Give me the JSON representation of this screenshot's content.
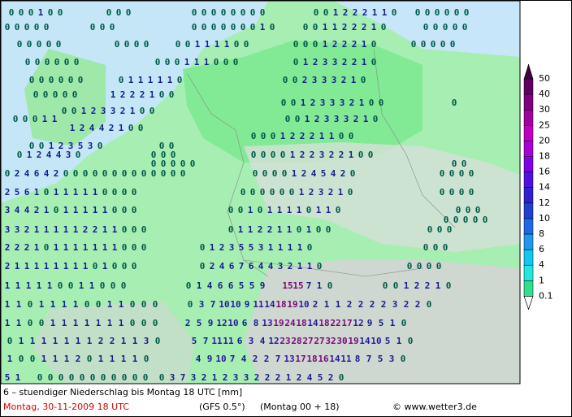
{
  "map": {
    "rows": [
      [
        [
          0,
          0,
          0,
          1,
          0,
          0
        ],
        [
          0,
          0,
          0
        ],
        [
          0,
          0,
          0,
          0,
          0,
          0,
          0,
          0
        ],
        [
          0,
          0,
          1,
          2,
          2,
          2,
          1,
          1,
          0
        ],
        [
          0,
          0,
          0,
          0,
          0,
          0
        ]
      ],
      [
        [
          0,
          0,
          0,
          0,
          0
        ],
        [
          0,
          0,
          0
        ],
        [
          0,
          0,
          0,
          0,
          0,
          0,
          0,
          1,
          0
        ],
        [
          0,
          0,
          1,
          1,
          2,
          2,
          2,
          1,
          0
        ],
        [
          0,
          0,
          0,
          0,
          0
        ]
      ],
      [
        [
          0,
          0,
          0,
          0,
          0
        ],
        [
          0,
          0,
          0,
          0
        ],
        [
          0,
          0,
          1,
          1,
          1,
          1,
          0,
          0
        ],
        [
          0,
          0,
          0,
          1,
          2,
          2,
          2,
          1,
          0
        ],
        [
          0,
          0,
          0,
          0,
          0
        ]
      ],
      [
        [
          0,
          0,
          0,
          0,
          0,
          0
        ],
        [
          0,
          0,
          0,
          1,
          1,
          1,
          0,
          0,
          0
        ],
        [
          0,
          1,
          2,
          3,
          3,
          2,
          2,
          1,
          0
        ]
      ],
      [
        [
          0,
          0,
          0,
          0,
          0,
          0
        ],
        [
          0,
          1,
          1,
          1,
          1,
          1,
          0
        ],
        [
          0,
          0,
          2,
          3,
          3,
          3,
          2,
          1,
          0
        ]
      ],
      [
        [
          0,
          0,
          0,
          0,
          0
        ],
        [
          1,
          2,
          2,
          2,
          1,
          0,
          0
        ]
      ],
      [
        [
          0,
          0,
          1,
          2,
          3,
          3,
          3,
          2,
          1,
          0,
          0
        ],
        [
          0
        ]
      ],
      [
        [
          0,
          0,
          1,
          2,
          3,
          3,
          2,
          1,
          0,
          0
        ]
      ],
      [
        [
          0,
          0,
          0,
          1,
          1
        ],
        [
          0,
          0,
          1,
          2,
          3,
          3,
          3,
          2,
          1,
          0
        ]
      ],
      [
        [
          1,
          2,
          4,
          4,
          2,
          1,
          0,
          0
        ]
      ],
      [
        [
          0,
          0,
          0,
          1,
          2,
          2,
          2,
          1,
          1,
          0,
          0
        ]
      ],
      [
        [
          0,
          0,
          1,
          2,
          3,
          5,
          3,
          0
        ],
        [
          0,
          0
        ]
      ],
      [
        [
          0,
          1,
          2,
          4,
          4,
          3,
          0
        ],
        [
          0,
          0,
          0
        ],
        [
          0,
          0,
          0,
          0,
          1,
          2,
          2,
          3,
          2,
          2,
          1,
          0,
          0
        ]
      ],
      [
        [
          0,
          0,
          0,
          0,
          0
        ],
        [
          0,
          0
        ]
      ],
      [
        [
          0,
          2,
          4,
          6,
          4,
          2,
          0,
          0,
          0,
          0
        ],
        [
          0,
          0,
          0,
          0,
          0,
          0,
          0,
          0,
          0
        ],
        [
          0,
          0,
          0,
          0,
          1,
          2,
          4,
          5,
          4,
          2,
          0
        ],
        [
          0,
          0,
          0,
          0
        ]
      ],
      [
        [
          2,
          5,
          6,
          1,
          0,
          1,
          1,
          1,
          1,
          1,
          0,
          0,
          0,
          0
        ],
        [
          0,
          0,
          0,
          0,
          0,
          0,
          1,
          2,
          3,
          2,
          1,
          0
        ],
        [
          0,
          0,
          0,
          0
        ]
      ],
      [
        [
          3,
          4,
          4,
          2,
          1,
          0,
          1,
          1,
          1,
          1,
          1,
          0,
          0,
          0
        ],
        [
          0,
          0,
          1,
          0,
          1,
          1,
          1,
          1,
          0,
          1,
          1,
          0
        ],
        [
          0,
          0,
          0
        ]
      ],
      [
        [
          0,
          0,
          0,
          0,
          0
        ]
      ],
      [
        [
          3,
          3,
          2,
          1,
          1,
          1,
          1,
          1,
          2,
          2,
          1,
          1,
          0,
          0,
          0
        ],
        [
          0,
          1,
          1,
          2,
          2,
          1,
          1,
          0,
          1,
          0,
          0
        ],
        [
          0,
          0,
          0
        ]
      ],
      [
        [
          2,
          2,
          2,
          1,
          0,
          1,
          1,
          1,
          1,
          1,
          1,
          1,
          0,
          0,
          0
        ],
        [
          0,
          1,
          2,
          3,
          5,
          5,
          3,
          1,
          1,
          1,
          1,
          0
        ],
        [
          0,
          0,
          0
        ]
      ],
      [
        [
          2,
          1,
          1,
          1,
          1,
          1,
          1,
          1,
          1,
          0,
          1,
          0,
          0,
          0
        ],
        [
          0,
          2,
          4,
          6,
          7,
          6,
          4,
          4,
          3,
          2,
          1,
          1,
          0
        ],
        [
          0,
          0,
          0,
          0
        ]
      ],
      [
        [
          1,
          1,
          1,
          1,
          1,
          0,
          0,
          1,
          1,
          0,
          0,
          0
        ],
        [
          0,
          1,
          4,
          6,
          6,
          5,
          5,
          9
        ],
        [
          15,
          15,
          7,
          1,
          0
        ],
        [
          0,
          0,
          1,
          2,
          2,
          1,
          0
        ]
      ],
      [
        [
          1,
          1,
          0,
          1,
          1,
          1,
          1,
          0,
          0,
          1,
          1,
          0,
          0,
          0
        ],
        [
          0,
          3,
          7,
          10,
          10,
          9,
          11,
          14,
          18,
          19,
          10,
          2,
          1,
          1,
          2,
          2,
          2,
          2,
          3,
          2,
          2,
          0
        ]
      ],
      [
        [
          1,
          1,
          0,
          0,
          1,
          1,
          1,
          1,
          1,
          1,
          1,
          0,
          0,
          0
        ],
        [
          2,
          5,
          9,
          12,
          10,
          6,
          8,
          13,
          19,
          24,
          18,
          14,
          18,
          22,
          17,
          12,
          9,
          5,
          1,
          0
        ]
      ],
      [
        [
          0,
          1,
          1,
          1,
          1,
          1,
          1,
          1,
          2,
          2,
          1,
          1,
          3,
          0
        ],
        [
          5,
          7,
          11,
          11,
          6,
          3,
          4,
          12,
          23,
          28,
          27,
          27,
          32,
          30,
          19,
          14,
          10,
          5,
          1,
          0
        ]
      ],
      [
        [
          1,
          0,
          0,
          1,
          1,
          1,
          2,
          0,
          1,
          1,
          1,
          1,
          0
        ],
        [
          4,
          9,
          10,
          7,
          4,
          2,
          2,
          7,
          13,
          17,
          18,
          16,
          14,
          11,
          8,
          7,
          5,
          3,
          0
        ]
      ],
      [
        [
          5,
          1
        ],
        [
          0,
          0,
          0,
          0,
          0,
          0,
          0,
          0,
          0,
          0,
          0
        ],
        [
          0,
          3,
          7,
          3,
          2,
          1,
          2,
          3,
          3,
          2,
          2,
          2,
          1,
          2,
          4,
          5,
          2,
          0
        ]
      ]
    ]
  },
  "legend": {
    "levels": [
      0.1,
      1,
      4,
      6,
      8,
      10,
      12,
      14,
      16,
      18,
      20,
      25,
      30,
      40,
      50
    ],
    "colors": [
      "#30e090",
      "#20e8e0",
      "#10c8f0",
      "#2098f0",
      "#2068e8",
      "#2040d0",
      "#3020d0",
      "#5010e0",
      "#8000e8",
      "#a800d8",
      "#c000c0",
      "#a000a0",
      "#800080",
      "#600060",
      "#400040"
    ]
  },
  "footer": {
    "title": "6 – stuendiger Niederschlag bis Montag 18 UTC [mm]",
    "date": "Montag, 30-11-2009   18 UTC",
    "model": "(GFS 0.5°)",
    "run": "(Montag 00 + 18)",
    "credit": "© www.wetter3.de"
  }
}
